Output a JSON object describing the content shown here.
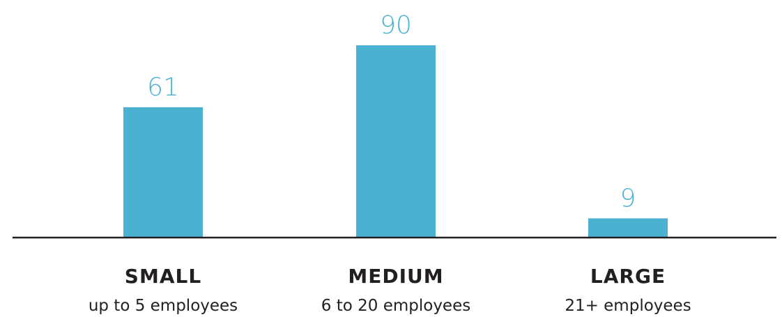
{
  "chart_data": {
    "type": "bar",
    "categories": [
      "SMALL",
      "MEDIUM",
      "LARGE"
    ],
    "subcategories": [
      "up to 5 employees",
      "6 to 20 employees",
      "21+ employees"
    ],
    "values": [
      61,
      90,
      9
    ],
    "ylim": [
      0,
      90
    ],
    "grid": false,
    "legend": "none",
    "colors": {
      "bar": "#4ab1d0",
      "value_label": "#4ab1d0",
      "axis": "#231f20",
      "text": "#231f20"
    }
  }
}
